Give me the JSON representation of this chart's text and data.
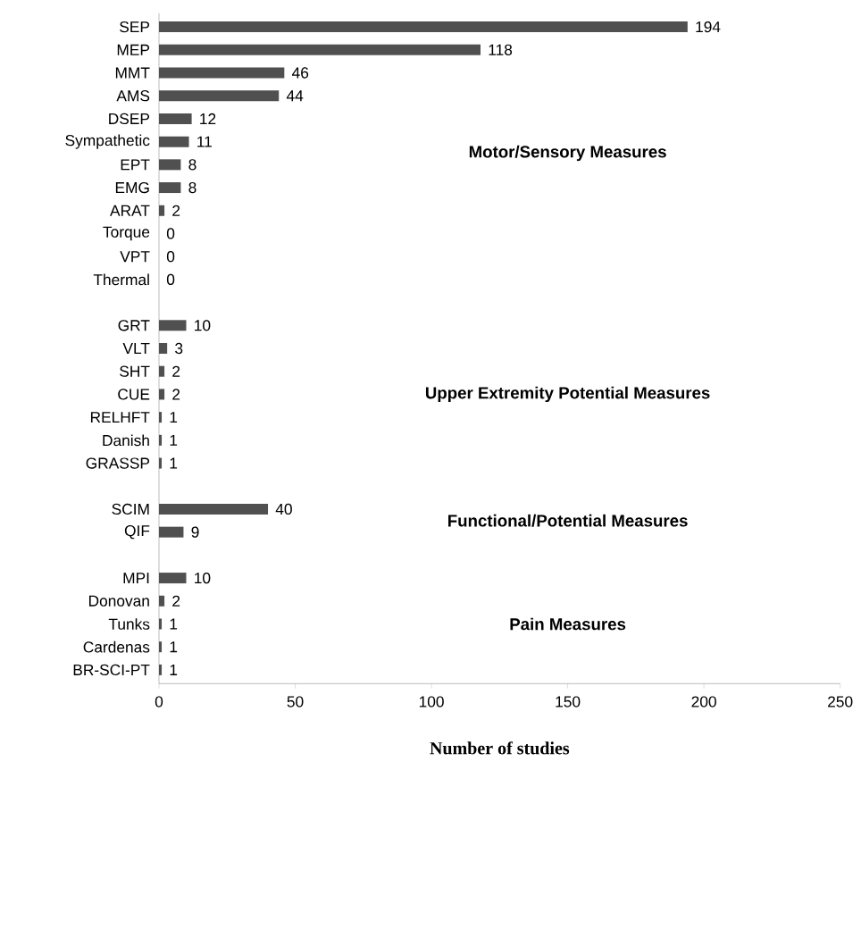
{
  "chart_data": {
    "type": "bar",
    "orientation": "horizontal",
    "categories": [
      "SEP",
      "MEP",
      "MMT",
      "AMS",
      "DSEP",
      "Sympathetic",
      "EPT",
      "EMG",
      "ARAT",
      "Torque",
      "VPT",
      "Thermal",
      null,
      "GRT",
      "VLT",
      "SHT",
      "CUE",
      "RELHFT",
      "Danish",
      "GRASSP",
      null,
      "SCIM",
      "QIF",
      null,
      "MPI",
      "Donovan",
      "Tunks",
      "Cardenas",
      "BR-SCI-PT"
    ],
    "values": [
      194,
      118,
      46,
      44,
      12,
      11,
      8,
      8,
      2,
      0,
      0,
      0,
      null,
      10,
      3,
      2,
      2,
      1,
      1,
      1,
      null,
      40,
      9,
      null,
      10,
      2,
      1,
      1,
      1
    ],
    "color": "#505050",
    "xlim": [
      0,
      250
    ],
    "xticks": [
      0,
      50,
      100,
      150,
      200,
      250
    ],
    "xlabel": "Number of studies",
    "data_labels": true,
    "annotations": [
      "Motor/Sensory Measures",
      "Upper Extremity Potential Measures",
      "Functional/Potential Measures",
      "Pain Measures"
    ]
  }
}
